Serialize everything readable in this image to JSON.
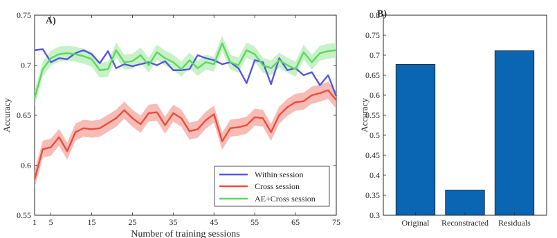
{
  "chart_data": [
    {
      "panel_label": "A)",
      "type": "line",
      "xlabel": "Number of training sessions",
      "ylabel": "Accuracy",
      "xlim": [
        1,
        75
      ],
      "ylim": [
        0.55,
        0.75
      ],
      "x_ticks": [
        1,
        5,
        15,
        25,
        35,
        45,
        55,
        65,
        75
      ],
      "y_ticks": [
        "0.55",
        "0.6",
        "0.65",
        "0.7",
        "0.75"
      ],
      "grid": false,
      "legend_position": "bottom-right",
      "x": [
        1,
        3,
        5,
        7,
        9,
        11,
        13,
        15,
        17,
        19,
        21,
        23,
        25,
        27,
        29,
        31,
        33,
        35,
        37,
        39,
        41,
        43,
        45,
        47,
        49,
        51,
        53,
        55,
        57,
        59,
        61,
        63,
        65,
        67,
        69,
        71,
        73,
        75
      ],
      "series": [
        {
          "name": "Within session",
          "color": "#5555e6",
          "values": [
            0.715,
            0.716,
            0.703,
            0.707,
            0.706,
            0.712,
            0.715,
            0.711,
            0.702,
            0.714,
            0.697,
            0.701,
            0.699,
            0.701,
            0.703,
            0.7,
            0.704,
            0.695,
            0.695,
            0.696,
            0.71,
            0.707,
            0.705,
            0.701,
            0.703,
            0.697,
            0.682,
            0.705,
            0.703,
            0.681,
            0.707,
            0.695,
            0.697,
            0.69,
            0.693,
            0.68,
            0.69,
            0.669
          ]
        },
        {
          "name": "Cross session",
          "color": "#f04a3a",
          "band_color": "#f4a59c",
          "values": [
            0.586,
            0.616,
            0.618,
            0.628,
            0.614,
            0.633,
            0.637,
            0.636,
            0.637,
            0.642,
            0.647,
            0.655,
            0.647,
            0.641,
            0.652,
            0.653,
            0.64,
            0.652,
            0.647,
            0.634,
            0.636,
            0.645,
            0.651,
            0.624,
            0.637,
            0.638,
            0.64,
            0.648,
            0.647,
            0.633,
            0.65,
            0.658,
            0.663,
            0.664,
            0.67,
            0.672,
            0.675,
            0.665
          ]
        },
        {
          "name": "AE+Cross session",
          "color": "#5cd85c",
          "band_color": "#b6ecb6",
          "values": [
            0.667,
            0.696,
            0.707,
            0.711,
            0.712,
            0.711,
            0.709,
            0.706,
            0.695,
            0.696,
            0.715,
            0.703,
            0.704,
            0.71,
            0.7,
            0.713,
            0.707,
            0.703,
            0.696,
            0.705,
            0.697,
            0.703,
            0.701,
            0.722,
            0.703,
            0.7,
            0.715,
            0.711,
            0.7,
            0.697,
            0.705,
            0.7,
            0.696,
            0.713,
            0.703,
            0.712,
            0.714,
            0.715
          ]
        }
      ]
    },
    {
      "panel_label": "B)",
      "type": "bar",
      "ylabel": "Accuracy",
      "categories": [
        "Original",
        "Reconstracted",
        "Residuals"
      ],
      "values": [
        0.677,
        0.363,
        0.711
      ],
      "ylim": [
        0.3,
        0.8
      ],
      "y_ticks": [
        "0.3",
        "0.35",
        "0.4",
        "0.45",
        "0.5",
        "0.55",
        "0.6",
        "0.65",
        "0.7",
        "0.75",
        "0.8"
      ],
      "bar_color": "#0a66b3",
      "grid": false
    }
  ]
}
